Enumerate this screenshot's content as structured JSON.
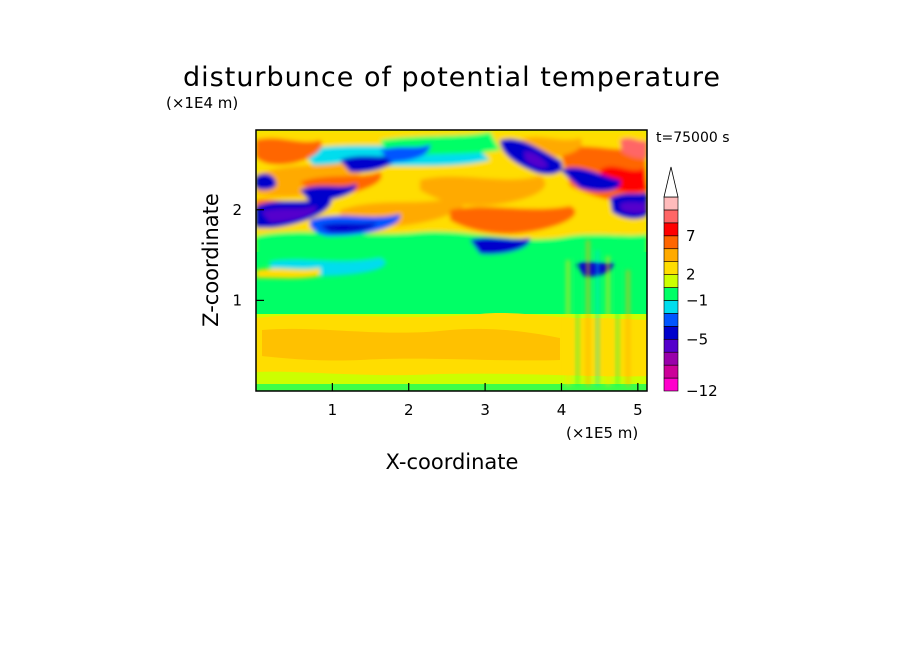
{
  "chart_data": {
    "type": "heatmap",
    "title": "disturbunce of potential temperature",
    "time_label": "t=75000 s",
    "xlabel": "X-coordinate",
    "ylabel": "Z-coordinate",
    "x_unit": "(×1E5 m)",
    "y_unit": "(×1E4 m)",
    "xlim": [
      0,
      5.12
    ],
    "ylim": [
      0,
      2.88
    ],
    "x_ticks": [
      1,
      2,
      3,
      4,
      5
    ],
    "y_ticks": [
      1,
      2
    ],
    "x_tick_labels": [
      "1",
      "2",
      "3",
      "4",
      "5"
    ],
    "y_tick_labels": [
      "1",
      "2"
    ],
    "colorbar": {
      "colors": [
        "#ff00cc",
        "#cc0099",
        "#9900aa",
        "#5500cc",
        "#0000cc",
        "#0055ff",
        "#00ddee",
        "#00ff66",
        "#ccff00",
        "#ffdd00",
        "#ffaa00",
        "#ff6600",
        "#ff0000",
        "#ff6666",
        "#ffbbbb"
      ],
      "labels": [
        "−12",
        "−5",
        "−1",
        "2",
        "7"
      ],
      "label_levels": [
        -12,
        -5,
        -1,
        2,
        7
      ],
      "extend": "max"
    },
    "field_description_levels": {
      "lower_layer_z_0_to_0.9": "2 to 3",
      "middle_layer_z_0.9_to_1.6": "-1 to 1",
      "upper_layer_z_1.6_to_2.88": "-5 to 7 (wavy bands)"
    }
  }
}
